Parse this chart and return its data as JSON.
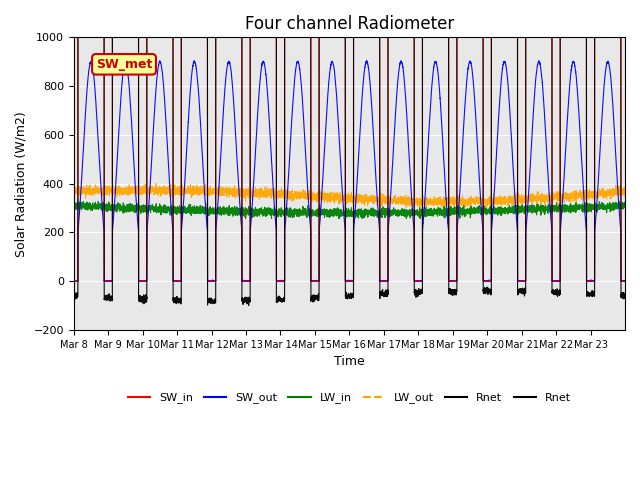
{
  "title": "Four channel Radiometer",
  "xlabel": "Time",
  "ylabel": "Solar Radiation (W/m2)",
  "ylim": [
    -200,
    1000
  ],
  "xtick_labels": [
    "Mar 8",
    "Mar 9",
    "Mar 10",
    "Mar 11",
    "Mar 12",
    "Mar 13",
    "Mar 14",
    "Mar 15",
    "Mar 16",
    "Mar 17",
    "Mar 18",
    "Mar 19",
    "Mar 20",
    "Mar 21",
    "Mar 22",
    "Mar 23"
  ],
  "legend_labels": [
    "SW_in",
    "SW_out",
    "LW_in",
    "LW_out",
    "Rnet",
    "Rnet"
  ],
  "inset_label": "SW_met",
  "inset_color": "#cc0000",
  "inset_bg": "#ffff99",
  "background_color": "#e8e8e8",
  "grid_color": "white",
  "title_fontsize": 12,
  "axis_fontsize": 9,
  "num_days": 16
}
